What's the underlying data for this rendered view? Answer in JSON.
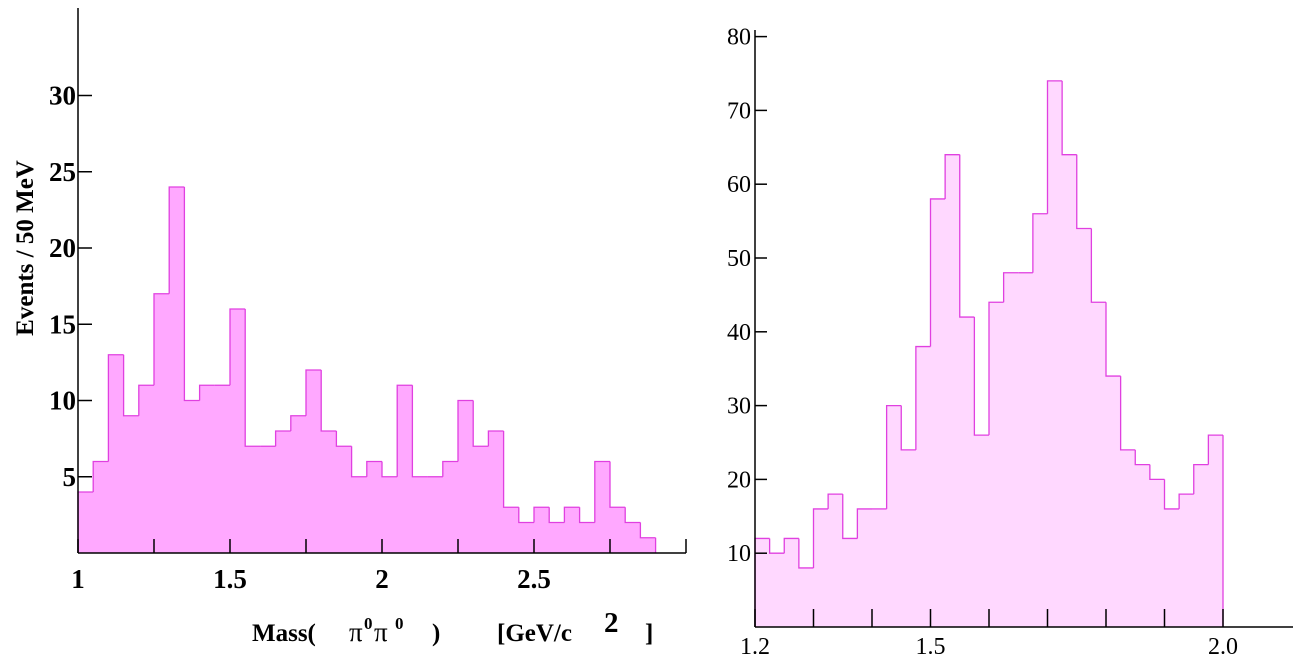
{
  "chart_data": [
    {
      "type": "bar",
      "histogram": true,
      "bin_width": 0.05,
      "x_start": 1.0,
      "xlim": [
        1.0,
        3.0
      ],
      "ylim": [
        0,
        35
      ],
      "values": [
        4,
        6,
        13,
        9,
        11,
        17,
        24,
        10,
        11,
        11,
        16,
        7,
        7,
        8,
        9,
        12,
        8,
        7,
        5,
        6,
        5,
        11,
        5,
        5,
        6,
        10,
        7,
        8,
        3,
        2,
        3,
        2,
        3,
        2,
        6,
        3,
        2,
        1
      ],
      "x_ticks": [
        {
          "value": 1,
          "label": "1"
        },
        {
          "value": 1.5,
          "label": "1.5"
        },
        {
          "value": 2,
          "label": "2"
        },
        {
          "value": 2.5,
          "label": "2.5"
        }
      ],
      "y_ticks": [
        {
          "value": 5,
          "label": "5"
        },
        {
          "value": 10,
          "label": "10"
        },
        {
          "value": 15,
          "label": "15"
        },
        {
          "value": 20,
          "label": "20"
        },
        {
          "value": 25,
          "label": "25"
        },
        {
          "value": 30,
          "label": "30"
        }
      ],
      "ylabel": "Events / 50 MeV",
      "xlabel": {
        "prefix": "Mass(",
        "pi": "π",
        "sup": "0",
        "close": ")",
        "unit": "[GeV/c",
        "unit_sup": "2",
        "unit_close": "]"
      },
      "fill_color": "#ffa8ff",
      "line_color": "#e040e0"
    },
    {
      "type": "bar",
      "histogram": true,
      "bin_width": 0.025,
      "x_start": 1.2,
      "xlim": [
        1.2,
        2.2
      ],
      "ylim": [
        0,
        82
      ],
      "values": [
        12,
        10,
        12,
        8,
        16,
        18,
        12,
        16,
        16,
        30,
        24,
        38,
        58,
        64,
        42,
        26,
        44,
        48,
        48,
        56,
        74,
        64,
        54,
        44,
        34,
        24,
        22,
        20,
        16,
        18,
        22,
        26
      ],
      "x_ticks": [
        {
          "value": 1.2,
          "label": "1.2"
        },
        {
          "value": 1.5,
          "label": "1.5"
        },
        {
          "value": 2.0,
          "label": "2.0"
        }
      ],
      "x_minor_ticks": [
        1.3,
        1.4,
        1.6,
        1.7,
        1.8,
        1.9
      ],
      "y_ticks": [
        {
          "value": 10,
          "label": "10"
        },
        {
          "value": 20,
          "label": "20"
        },
        {
          "value": 30,
          "label": "30"
        },
        {
          "value": 40,
          "label": "40"
        },
        {
          "value": 50,
          "label": "50"
        },
        {
          "value": 60,
          "label": "60"
        },
        {
          "value": 70,
          "label": "70"
        },
        {
          "value": 80,
          "label": "80"
        }
      ],
      "fill_color": "#ffd8ff",
      "line_color": "#e040e0"
    }
  ]
}
